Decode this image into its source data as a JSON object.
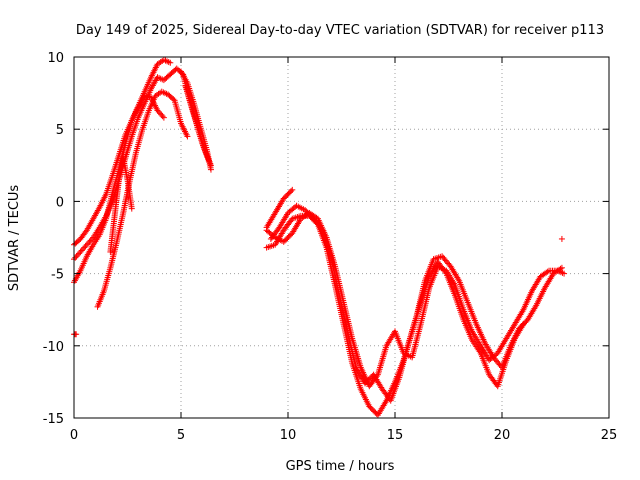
{
  "chart_data": {
    "type": "scatter",
    "title": "Day 149 of 2025, Sidereal Day-to-day VTEC variation (SDTVAR) for receiver p113",
    "xlabel": "GPS time / hours",
    "ylabel": "SDTVAR / TECUs",
    "xlim": [
      0,
      25
    ],
    "ylim": [
      -15,
      10
    ],
    "xticks": [
      "0",
      "5",
      "10",
      "15",
      "20",
      "25"
    ],
    "yticks": [
      "-15",
      "-10",
      "-5",
      "0",
      "5",
      "10"
    ],
    "grid": true,
    "marker": "+",
    "color": "#ff0000",
    "series": [
      {
        "x": [
          0.0,
          0.3,
          0.6,
          0.9,
          1.2,
          1.5,
          1.8,
          2.1,
          2.4,
          2.7,
          3.0,
          3.3,
          3.6,
          3.9,
          4.2,
          4.5,
          4.8,
          5.1,
          5.4,
          5.7,
          6.0,
          6.3
        ],
        "y": [
          -4.0,
          -3.5,
          -3.0,
          -2.5,
          -1.8,
          -1.0,
          0.0,
          1.5,
          3.0,
          4.5,
          5.8,
          6.8,
          7.8,
          8.6,
          8.4,
          8.8,
          9.2,
          8.8,
          7.0,
          5.5,
          4.0,
          2.8
        ]
      },
      {
        "x": [
          0.0,
          0.3,
          0.6,
          0.9,
          1.2,
          1.5,
          1.8,
          2.1,
          2.4,
          2.7,
          3.0,
          3.3,
          3.6,
          3.9,
          4.2
        ],
        "y": [
          -5.6,
          -4.8,
          -3.8,
          -3.0,
          -2.3,
          -1.2,
          0.6,
          2.2,
          4.0,
          5.6,
          6.5,
          7.3,
          7.2,
          6.3,
          5.8
        ]
      },
      {
        "x": [
          0.0,
          0.3,
          0.6,
          0.9,
          1.2,
          1.5,
          1.8,
          2.1,
          2.4,
          2.7,
          3.0,
          3.3,
          3.6,
          3.9,
          4.2,
          4.5
        ],
        "y": [
          -3.0,
          -2.6,
          -2.0,
          -1.2,
          -0.4,
          0.5,
          1.8,
          3.2,
          4.6,
          5.6,
          6.6,
          7.6,
          8.6,
          9.5,
          9.8,
          9.6
        ]
      },
      {
        "x": [
          1.1,
          1.4,
          1.7,
          2.0,
          2.3,
          2.6,
          2.9,
          3.2,
          3.5,
          3.8,
          4.1,
          4.4,
          4.7,
          5.0,
          5.3
        ],
        "y": [
          -7.3,
          -6.2,
          -4.6,
          -2.8,
          -0.8,
          1.4,
          3.4,
          5.0,
          6.3,
          7.3,
          7.6,
          7.4,
          7.0,
          5.4,
          4.5
        ]
      },
      {
        "x": [
          1.7,
          1.9,
          2.1,
          2.3,
          2.5,
          2.7
        ],
        "y": [
          -3.5,
          -1.0,
          1.5,
          3.0,
          1.5,
          -0.5
        ]
      },
      {
        "x": [
          5.0,
          5.3,
          5.6,
          5.9,
          6.2,
          6.4
        ],
        "y": [
          9.0,
          8.2,
          6.8,
          5.2,
          3.6,
          2.2
        ]
      },
      {
        "x": [
          5.2,
          5.5,
          5.8,
          6.1,
          6.4
        ],
        "y": [
          8.0,
          6.6,
          5.0,
          3.6,
          2.5
        ]
      },
      {
        "x": [
          0.0,
          0.1
        ],
        "y": [
          -9.2,
          -9.2
        ]
      },
      {
        "x": [
          9.0,
          9.4,
          9.8,
          10.2,
          10.6,
          11.0,
          11.4,
          11.8,
          12.2,
          12.6,
          13.0,
          13.4,
          13.8,
          14.2,
          14.6,
          15.0,
          15.4,
          15.8,
          16.2,
          16.6,
          17.0,
          17.4,
          17.8,
          18.2,
          18.6,
          19.0,
          19.4,
          19.8,
          20.2,
          20.6,
          21.0,
          21.4,
          21.8,
          22.2,
          22.6,
          22.9
        ],
        "y": [
          -2.0,
          -2.5,
          -2.8,
          -2.2,
          -1.2,
          -0.8,
          -1.2,
          -2.5,
          -4.5,
          -7.0,
          -9.5,
          -11.5,
          -12.8,
          -12.0,
          -10.0,
          -9.0,
          -10.5,
          -10.8,
          -8.5,
          -6.0,
          -4.5,
          -4.8,
          -5.8,
          -7.5,
          -9.0,
          -10.0,
          -11.0,
          -10.5,
          -9.5,
          -8.5,
          -7.5,
          -6.2,
          -5.2,
          -4.8,
          -4.8,
          -5.0
        ]
      },
      {
        "x": [
          9.0,
          9.4,
          9.8,
          10.2,
          10.6,
          11.0,
          11.4,
          11.8,
          12.2,
          12.6,
          13.0,
          13.4,
          13.8,
          14.2,
          14.6,
          15.0,
          15.4,
          15.8,
          16.2,
          16.6,
          17.0,
          17.4,
          17.8,
          18.2,
          18.6,
          19.0,
          19.4,
          19.8,
          20.2,
          20.6,
          21.0
        ],
        "y": [
          -3.2,
          -3.0,
          -2.0,
          -1.2,
          -1.0,
          -1.0,
          -1.6,
          -3.2,
          -5.8,
          -8.5,
          -11.2,
          -13.0,
          -14.2,
          -14.8,
          -13.8,
          -12.5,
          -11.0,
          -9.0,
          -7.0,
          -5.2,
          -4.2,
          -5.0,
          -6.5,
          -8.2,
          -9.6,
          -10.5,
          -12.0,
          -12.8,
          -11.0,
          -9.5,
          -8.5
        ]
      },
      {
        "x": [
          9.2,
          9.6,
          10.0,
          10.4,
          10.8,
          11.2,
          11.6,
          12.0,
          12.4,
          12.8,
          13.2,
          13.6,
          14.0,
          14.4,
          14.8,
          15.2,
          15.6,
          16.0,
          16.4,
          16.8,
          17.2,
          17.6,
          18.0,
          18.4,
          18.8,
          19.2,
          19.6,
          20.0,
          20.4,
          20.8,
          21.2,
          21.6,
          22.0,
          22.4,
          22.8
        ],
        "y": [
          -2.6,
          -1.8,
          -0.8,
          -0.3,
          -0.6,
          -1.2,
          -2.0,
          -3.8,
          -6.5,
          -9.2,
          -11.6,
          -12.6,
          -12.0,
          -13.0,
          -13.8,
          -12.2,
          -10.0,
          -8.0,
          -5.5,
          -4.0,
          -3.8,
          -4.5,
          -5.5,
          -7.0,
          -8.5,
          -9.8,
          -10.8,
          -11.5,
          -10.0,
          -8.8,
          -8.2,
          -7.2,
          -6.0,
          -5.0,
          -4.6
        ]
      },
      {
        "x": [
          9.0,
          9.4,
          9.8,
          10.2
        ],
        "y": [
          -1.8,
          -0.8,
          0.2,
          0.8
        ]
      },
      {
        "x": [
          22.8
        ],
        "y": [
          -2.6
        ]
      }
    ]
  }
}
